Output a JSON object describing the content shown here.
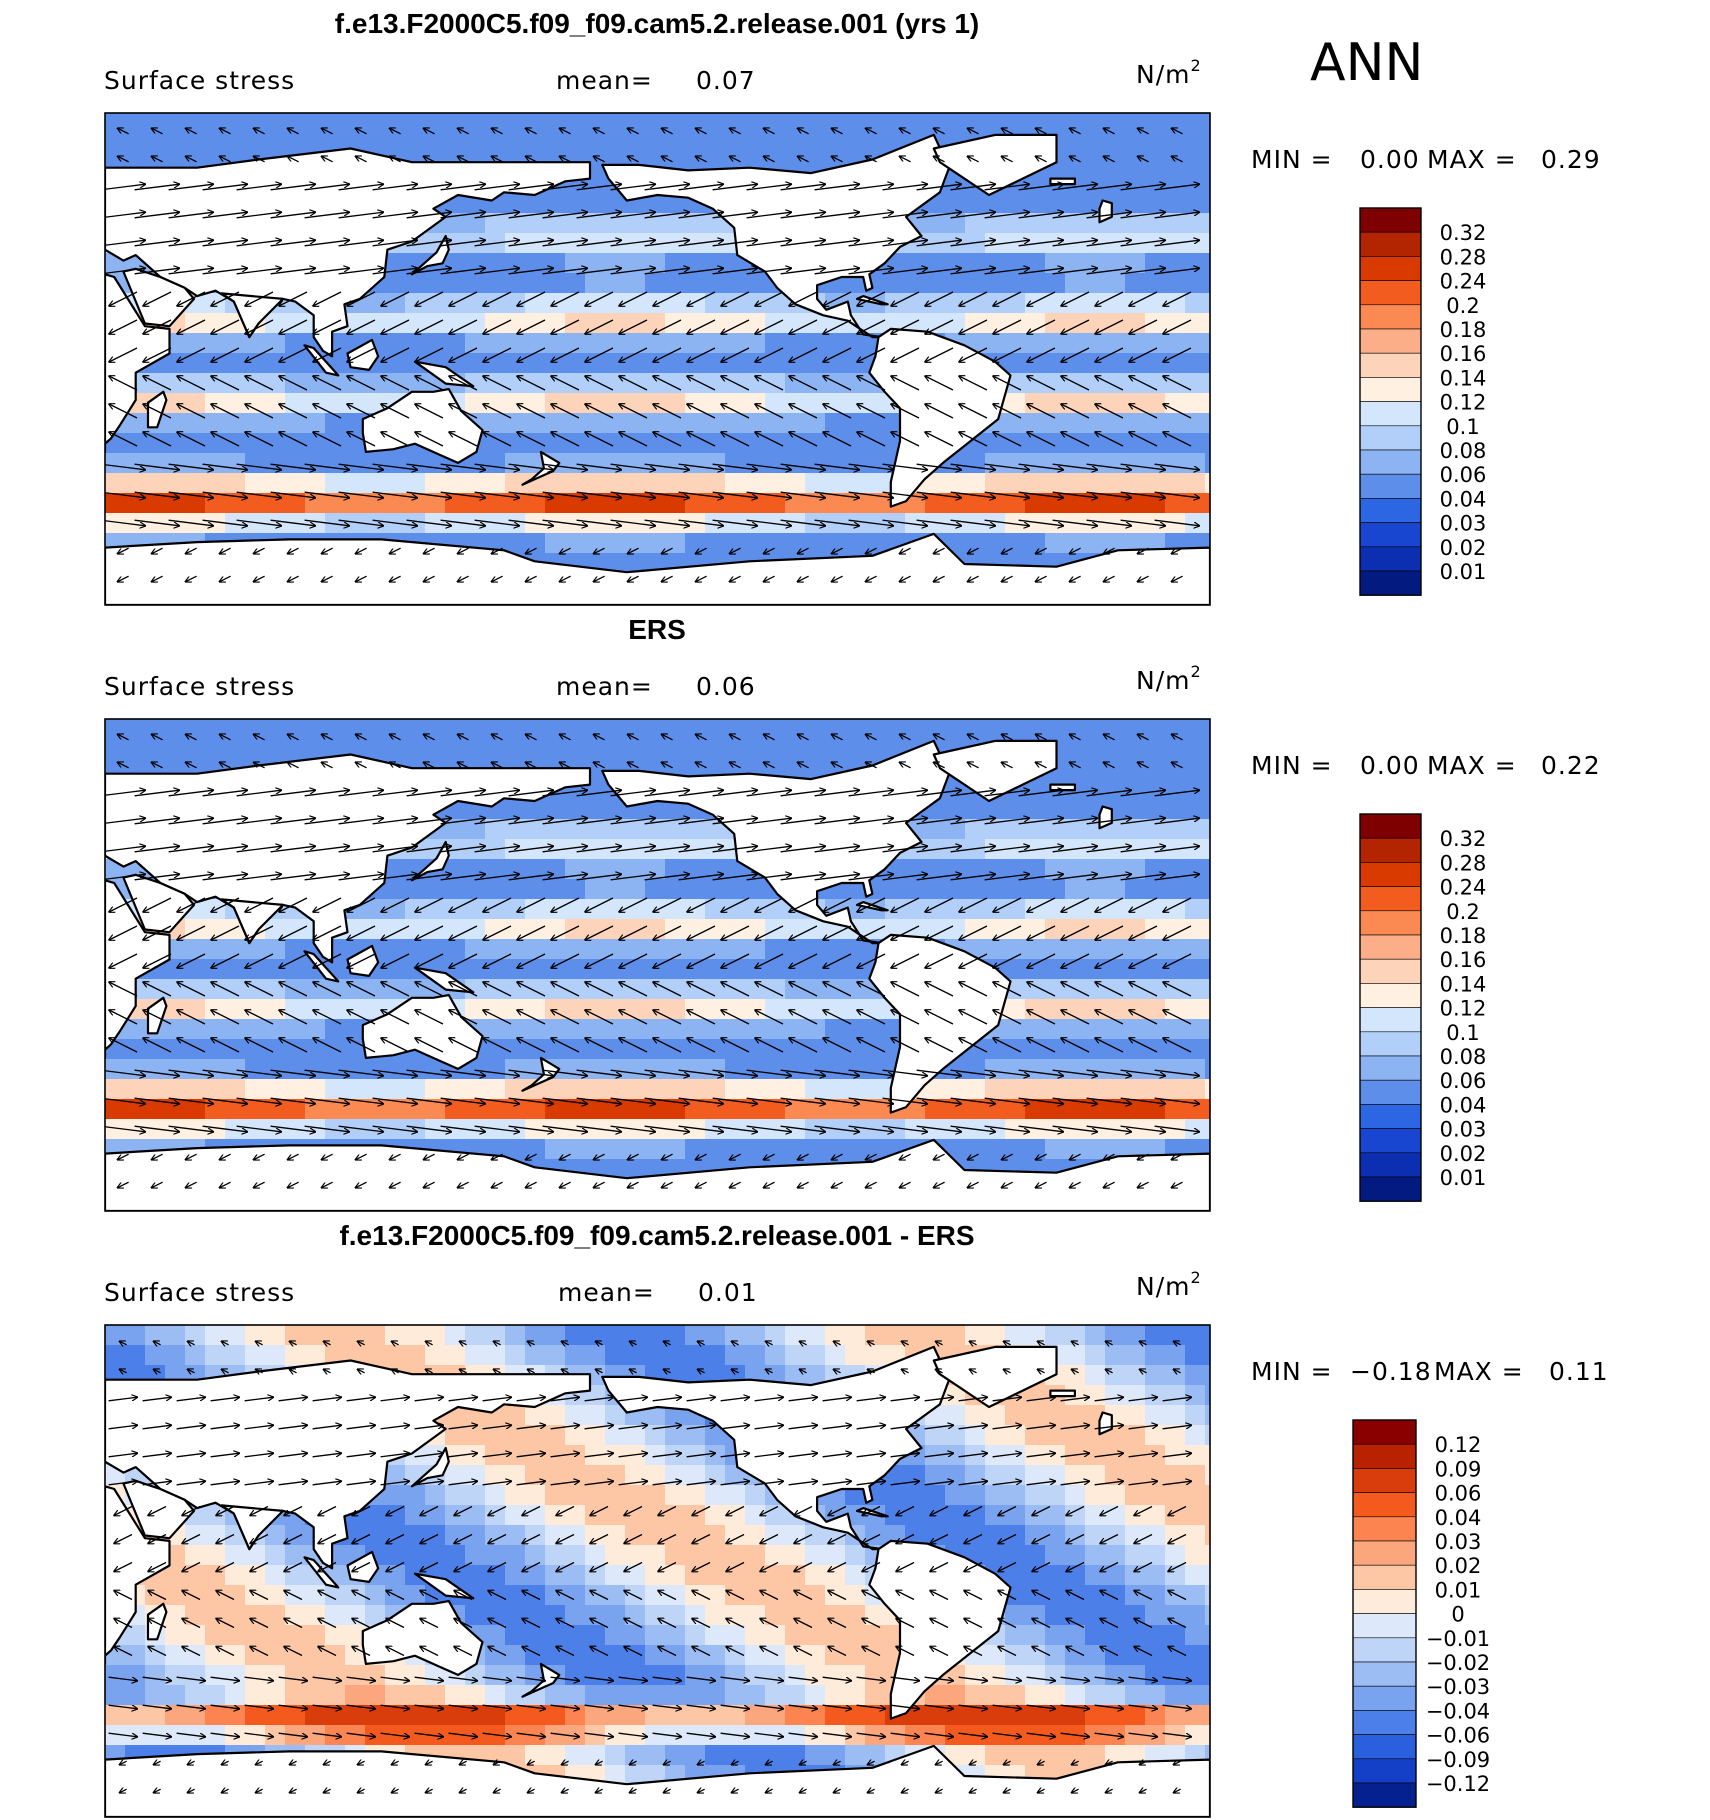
{
  "season": "ANN",
  "panels": [
    {
      "title": "f.e13.F2000C5.f09_f09.cam5.2.release.001 (yrs 1)",
      "variable": "Surface stress",
      "mean_label": "mean=",
      "mean_value": "0.07",
      "units": "N/m",
      "units_sup": "2",
      "min_label": "MIN =",
      "min_value": "0.00",
      "max_label": "MAX =",
      "max_value": "0.29",
      "scale": "abs",
      "colorbar": {
        "levels": [
          "0.32",
          "0.28",
          "0.24",
          "0.2",
          "0.18",
          "0.16",
          "0.14",
          "0.12",
          "0.1",
          "0.08",
          "0.06",
          "0.04",
          "0.03",
          "0.02",
          "0.01"
        ],
        "colors": [
          "#7f0000",
          "#b22500",
          "#d83a00",
          "#f35c1f",
          "#fb8a52",
          "#fcae88",
          "#fdd3b9",
          "#fff0e2",
          "#d3e6fb",
          "#b1cff8",
          "#8db4f2",
          "#5c8eea",
          "#2d66e3",
          "#1846d0",
          "#0b2fb0",
          "#031a80"
        ]
      }
    },
    {
      "title": "ERS",
      "variable": "Surface stress",
      "mean_label": "mean=",
      "mean_value": "0.06",
      "units": "N/m",
      "units_sup": "2",
      "min_label": "MIN =",
      "min_value": "0.00",
      "max_label": "MAX =",
      "max_value": "0.22",
      "scale": "abs",
      "colorbar": {
        "levels": [
          "0.32",
          "0.28",
          "0.24",
          "0.2",
          "0.18",
          "0.16",
          "0.14",
          "0.12",
          "0.1",
          "0.08",
          "0.06",
          "0.04",
          "0.03",
          "0.02",
          "0.01"
        ],
        "colors": [
          "#7f0000",
          "#b22500",
          "#d83a00",
          "#f35c1f",
          "#fb8a52",
          "#fcae88",
          "#fdd3b9",
          "#fff0e2",
          "#d3e6fb",
          "#b1cff8",
          "#8db4f2",
          "#5c8eea",
          "#2d66e3",
          "#1846d0",
          "#0b2fb0",
          "#031a80"
        ]
      }
    },
    {
      "title": "f.e13.F2000C5.f09_f09.cam5.2.release.001 - ERS",
      "variable": "Surface stress",
      "mean_label": "mean=",
      "mean_value": "0.01",
      "units": "N/m",
      "units_sup": "2",
      "min_label": "MIN =",
      "min_value": "−0.18",
      "max_label": "MAX =",
      "max_value": "0.11",
      "scale": "diff",
      "colorbar": {
        "levels": [
          "0.12",
          "0.09",
          "0.06",
          "0.04",
          "0.03",
          "0.02",
          "0.01",
          "0",
          "−0.01",
          "−0.02",
          "−0.03",
          "−0.04",
          "−0.06",
          "−0.09",
          "−0.12"
        ],
        "colors": [
          "#8a0000",
          "#b82200",
          "#d93d0b",
          "#f45a1e",
          "#fb8450",
          "#fba67d",
          "#fdc7a6",
          "#feebd9",
          "#dde9fa",
          "#bfd5f7",
          "#9cbdf3",
          "#7aa3ef",
          "#4c7fe8",
          "#2a5fde",
          "#1440c8",
          "#05208f"
        ]
      }
    }
  ]
}
